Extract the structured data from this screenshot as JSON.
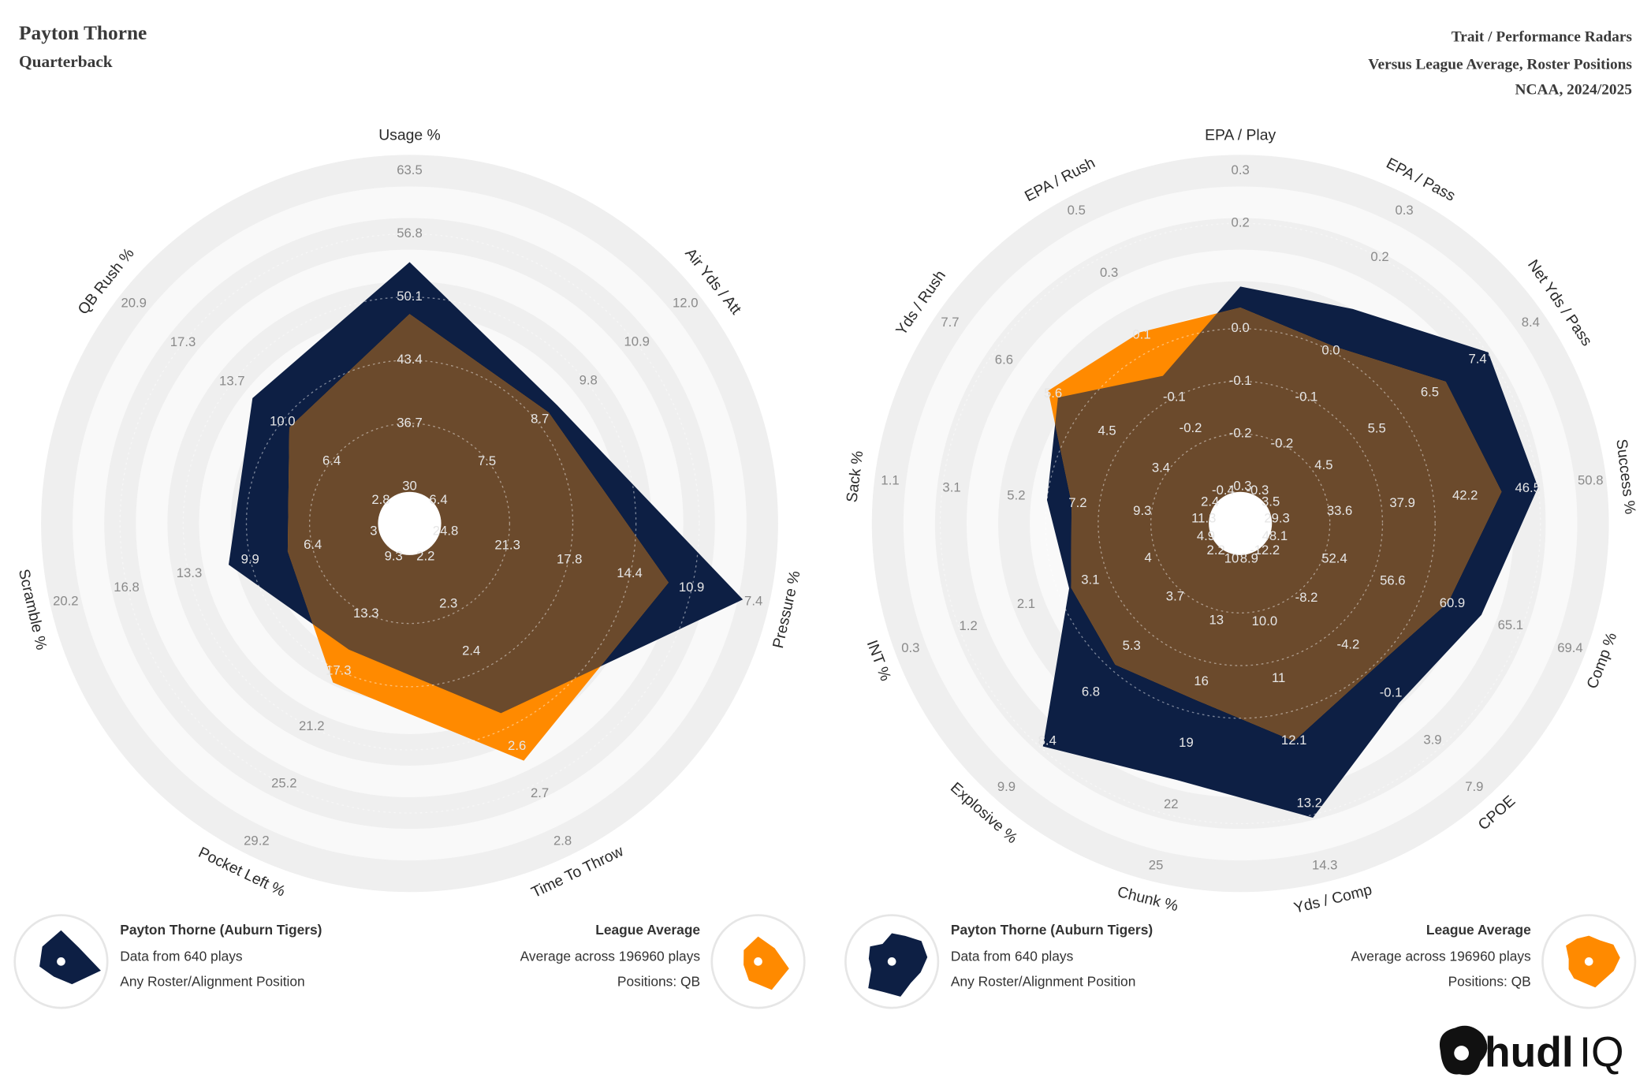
{
  "header": {
    "name": "Payton Thorne",
    "position": "Quarterback",
    "title": "Trait / Performance Radars",
    "subtitle": "Versus League Average, Roster Positions",
    "season": "NCAA, 2024/2025"
  },
  "logo": {
    "text": "hudl",
    "suffix": "IQ"
  },
  "chart_data": [
    {
      "type": "radar",
      "overlap_color": "#6b4a2c",
      "axes": [
        {
          "label": "Usage %",
          "lim": [
            30,
            63.5
          ],
          "ticks": [
            30,
            36.7,
            43.4,
            50.1,
            56.8,
            63.5
          ]
        },
        {
          "label": "Air Yds / Att",
          "lim": [
            6.4,
            12.0
          ],
          "ticks": [
            6.4,
            7.5,
            8.7,
            9.8,
            10.9,
            {
              "value": 12.0,
              "label": "12.0"
            }
          ]
        },
        {
          "label": "Pressure %",
          "lim": [
            24.8,
            7.4
          ],
          "ticks": [
            24.8,
            21.3,
            17.8,
            14.4,
            10.9,
            7.4
          ]
        },
        {
          "label": "Time To Throw",
          "lim": [
            2.2,
            2.8
          ],
          "ticks": [
            2.2,
            2.3,
            2.4,
            2.6,
            2.7,
            2.8
          ]
        },
        {
          "label": "Pocket Left %",
          "lim": [
            9.3,
            29.2
          ],
          "ticks": [
            9.3,
            13.3,
            17.3,
            21.2,
            25.2,
            29.2
          ]
        },
        {
          "label": "Scramble %",
          "lim": [
            3.0,
            20.2
          ],
          "ticks": [
            {
              "value": 3.0,
              "label": "3"
            },
            6.4,
            9.9,
            13.3,
            16.8,
            20.2
          ]
        },
        {
          "label": "QB Rush %",
          "lim": [
            2.8,
            20.9
          ],
          "ticks": [
            2.8,
            6.4,
            {
              "value": 10.0,
              "label": "10.0"
            },
            13.7,
            17.3,
            20.9
          ]
        }
      ],
      "series": [
        {
          "name": "Payton Thorne (Auburn Tigers)",
          "details": [
            "Data from 640 plays",
            "Any Roster/Alignment Position"
          ],
          "color": "#0d1f44",
          "values": [
            53.8,
            9.1,
            8.0,
            2.53,
            15.8,
            11.1,
            12.2
          ]
        },
        {
          "name": "League Average",
          "details": [
            "Average across 196960 plays",
            "Positions: QB"
          ],
          "color": "#ff8a00",
          "values": [
            48.3,
            8.9,
            12.2,
            2.63,
            18.1,
            7.8,
            9.5
          ]
        }
      ]
    },
    {
      "type": "radar",
      "overlap_color": "#6b4a2c",
      "axes": [
        {
          "label": "EPA / Play",
          "lim": [
            -0.3,
            0.3
          ],
          "ticks": [
            -0.3,
            -0.2,
            -0.1,
            {
              "value": 0,
              "label": "0.0"
            },
            0.2,
            0.3
          ]
        },
        {
          "label": "EPA / Pass",
          "lim": [
            -0.3,
            0.3
          ],
          "ticks": [
            -0.3,
            -0.2,
            -0.1,
            {
              "value": 0,
              "label": "0.0"
            },
            0.2,
            0.3
          ]
        },
        {
          "label": "Net Yds / Pass",
          "lim": [
            3.5,
            8.4
          ],
          "ticks": [
            3.5,
            4.5,
            5.5,
            6.5,
            7.4,
            8.4
          ]
        },
        {
          "label": "Success %",
          "lim": [
            29.3,
            50.8
          ],
          "ticks": [
            29.3,
            33.6,
            37.9,
            42.2,
            46.5,
            50.8
          ]
        },
        {
          "label": "Comp %",
          "lim": [
            48.1,
            69.4
          ],
          "ticks": [
            48.1,
            52.4,
            56.6,
            60.9,
            65.1,
            69.4
          ]
        },
        {
          "label": "CPOE",
          "lim": [
            -12.2,
            7.9
          ],
          "ticks": [
            -12.2,
            -8.2,
            -4.2,
            -0.1,
            3.9,
            7.9
          ]
        },
        {
          "label": "Yds / Comp",
          "lim": [
            8.9,
            14.3
          ],
          "ticks": [
            8.9,
            {
              "value": 10.0,
              "label": "10.0"
            },
            11.0,
            12.1,
            13.2,
            14.3
          ]
        },
        {
          "label": "Chunk %",
          "lim": [
            10,
            25
          ],
          "ticks": [
            10,
            13,
            16,
            19,
            22,
            25
          ]
        },
        {
          "label": "Explosive %",
          "lim": [
            2.2,
            9.9
          ],
          "ticks": [
            2.2,
            3.7,
            5.3,
            6.8,
            8.4,
            9.9
          ]
        },
        {
          "label": "INT %",
          "lim": [
            4.9,
            0.3
          ],
          "ticks": [
            4.9,
            4.0,
            3.1,
            2.1,
            1.2,
            0.3
          ]
        },
        {
          "label": "Sack %",
          "lim": [
            11.3,
            1.1
          ],
          "ticks": [
            11.3,
            9.3,
            7.2,
            5.2,
            3.1,
            1.1
          ]
        },
        {
          "label": "Yds / Rush",
          "lim": [
            2.4,
            7.7
          ],
          "ticks": [
            2.4,
            3.4,
            4.5,
            5.6,
            6.6,
            7.7
          ]
        },
        {
          "label": "EPA / Rush",
          "lim": [
            -0.4,
            0.5
          ],
          "ticks": [
            -0.4,
            -0.2,
            -0.1,
            0.1,
            0.3,
            0.5
          ]
        }
      ],
      "series": [
        {
          "name": "Payton Thorne (Auburn Tigers)",
          "details": [
            "Data from 640 plays",
            "Any Roster/Alignment Position"
          ],
          "color": "#0d1f44",
          "values": [
            0.08,
            0.09,
            7.6,
            47.2,
            63.0,
            0.7,
            13.45,
            20.8,
            8.56,
            2.77,
            6.2,
            5.5,
            -0.03
          ]
        },
        {
          "name": "League Average",
          "details": [
            "Average across 196960 plays",
            "Positions: QB"
          ],
          "color": "#ff8a00",
          "values": [
            0.04,
            0.01,
            6.8,
            44.7,
            60.6,
            -2.0,
            12.1,
            16.9,
            5.9,
            2.8,
            7.0,
            5.7,
            0.11
          ]
        }
      ]
    }
  ]
}
